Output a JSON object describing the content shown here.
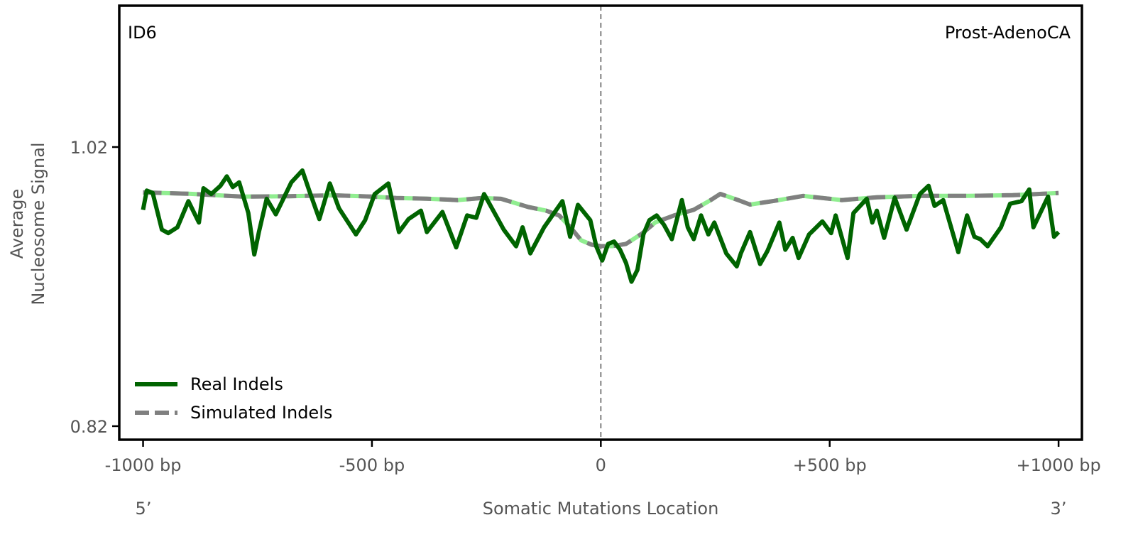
{
  "chart_data": {
    "type": "line",
    "panel_label": "ID6",
    "cancer_type": "Prost-AdenoCA",
    "xlabel": "Somatic Mutations Location",
    "ylabel_lines": [
      "Average",
      "Nucleosome Signal"
    ],
    "x_end_labels": {
      "left": "5’",
      "right": "3’"
    },
    "xlim": [
      -1052,
      1051
    ],
    "ylim": [
      0.8103,
      1.1213
    ],
    "x_ticks": [
      {
        "value": -1000,
        "label": "-1000 bp"
      },
      {
        "value": -500,
        "label": "-500 bp"
      },
      {
        "value": 0,
        "label": "0"
      },
      {
        "value": 500,
        "label": "+500 bp"
      },
      {
        "value": 1000,
        "label": "+1000 bp"
      }
    ],
    "y_ticks": [
      {
        "value": 1.02,
        "label": "1.02"
      },
      {
        "value": 0.82,
        "label": "0.82"
      }
    ],
    "reference_line_x": 0,
    "grid": false,
    "legend": {
      "placement": "bottom-left",
      "entries": [
        "Real Indels",
        "Simulated Indels"
      ]
    },
    "colors": {
      "real": "#006400",
      "simulated": "#808080",
      "simulated_under": "#90ee90",
      "frame": "#000000",
      "refline": "#808080"
    },
    "series": [
      {
        "name": "Real Indels",
        "x": [
          -1000,
          -992,
          -979,
          -959,
          -945,
          -925,
          -901,
          -878,
          -868,
          -851,
          -831,
          -817,
          -804,
          -790,
          -770,
          -757,
          -747,
          -730,
          -710,
          -676,
          -652,
          -636,
          -615,
          -592,
          -572,
          -535,
          -515,
          -494,
          -464,
          -441,
          -420,
          -393,
          -380,
          -346,
          -316,
          -292,
          -272,
          -255,
          -212,
          -185,
          -171,
          -154,
          -124,
          -84,
          -67,
          -50,
          -23,
          -10,
          3,
          16,
          29,
          42,
          55,
          67,
          80,
          93,
          106,
          122,
          138,
          155,
          177,
          190,
          203,
          219,
          235,
          248,
          274,
          297,
          306,
          326,
          348,
          364,
          390,
          403,
          419,
          432,
          455,
          484,
          503,
          513,
          539,
          552,
          581,
          593,
          603,
          619,
          642,
          668,
          697,
          716,
          729,
          748,
          781,
          800,
          816,
          829,
          845,
          874,
          894,
          919,
          936,
          945,
          977,
          990,
          1000
        ],
        "y": [
          0.975,
          0.9888,
          0.9871,
          0.9608,
          0.9583,
          0.9625,
          0.9812,
          0.9659,
          0.9905,
          0.9863,
          0.9922,
          0.999,
          0.9913,
          0.9947,
          0.9727,
          0.943,
          0.9591,
          0.9829,
          0.9718,
          0.9947,
          1.0032,
          0.9879,
          0.9684,
          0.9939,
          0.9761,
          0.9574,
          0.9676,
          0.9863,
          0.9939,
          0.9591,
          0.9684,
          0.9744,
          0.9591,
          0.9735,
          0.9481,
          0.971,
          0.9693,
          0.9863,
          0.9608,
          0.9489,
          0.9625,
          0.9438,
          0.9625,
          0.9812,
          0.9557,
          0.9786,
          0.9676,
          0.9489,
          0.9387,
          0.9506,
          0.9523,
          0.9464,
          0.937,
          0.9235,
          0.932,
          0.9574,
          0.9676,
          0.971,
          0.9642,
          0.954,
          0.982,
          0.9625,
          0.954,
          0.971,
          0.9574,
          0.9659,
          0.9438,
          0.9345,
          0.9438,
          0.9591,
          0.9362,
          0.9455,
          0.9659,
          0.9464,
          0.9549,
          0.9405,
          0.9574,
          0.9667,
          0.9583,
          0.971,
          0.9405,
          0.9727,
          0.9829,
          0.9659,
          0.9744,
          0.9549,
          0.9837,
          0.9608,
          0.9863,
          0.9922,
          0.9778,
          0.982,
          0.9447,
          0.971,
          0.9557,
          0.954,
          0.9489,
          0.9625,
          0.9794,
          0.9812,
          0.9896,
          0.9625,
          0.9845,
          0.9557,
          0.9591
        ]
      },
      {
        "name": "Simulated Indels",
        "x": [
          -1000,
          -900,
          -784,
          -680,
          -582,
          -500,
          -447,
          -380,
          -313,
          -260,
          -218,
          -158,
          -120,
          -91,
          -65,
          -43,
          -20,
          0,
          25,
          55,
          90,
          119,
          160,
          203,
          240,
          261,
          300,
          326,
          380,
          442,
          526,
          603,
          700,
          800,
          900,
          1000
        ],
        "y": [
          0.9875,
          0.9865,
          0.9845,
          0.9848,
          0.9854,
          0.9845,
          0.9835,
          0.983,
          0.982,
          0.9835,
          0.9829,
          0.977,
          0.9745,
          0.971,
          0.962,
          0.9532,
          0.95,
          0.949,
          0.949,
          0.9506,
          0.958,
          0.966,
          0.971,
          0.975,
          0.982,
          0.9864,
          0.982,
          0.9788,
          0.9815,
          0.985,
          0.982,
          0.984,
          0.985,
          0.985,
          0.9855,
          0.987
        ]
      }
    ]
  }
}
